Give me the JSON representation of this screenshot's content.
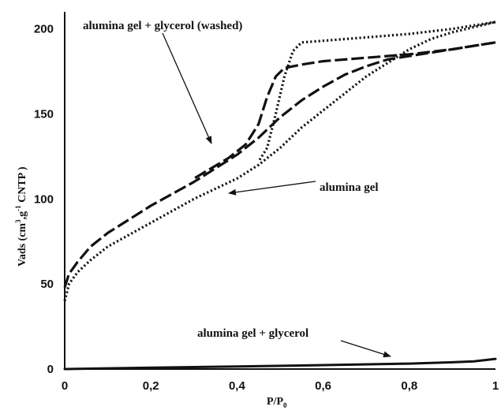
{
  "chart_data": {
    "type": "line",
    "xlabel": "P/P",
    "xlabel_sub": "0",
    "ylabel_parts": [
      "Vads (cm",
      "3",
      ",g",
      "-1",
      " CNTP )"
    ],
    "xlim": [
      0,
      1
    ],
    "ylim": [
      0,
      210
    ],
    "x_ticks": [
      0,
      0.2,
      0.4,
      0.6,
      0.8,
      1
    ],
    "x_tick_labels": [
      "0",
      "0,2",
      "0,4",
      "0,6",
      "0,8",
      "1"
    ],
    "y_ticks": [
      0,
      50,
      100,
      150,
      200
    ],
    "y_tick_labels": [
      "0",
      "50",
      "100",
      "150",
      "200"
    ],
    "grid": false,
    "series": [
      {
        "name": "alumina gel + glycerol (washed)",
        "style": "dash",
        "color": "#111111",
        "adsorption": [
          [
            0,
            48
          ],
          [
            0.01,
            56
          ],
          [
            0.03,
            63
          ],
          [
            0.06,
            72
          ],
          [
            0.1,
            80
          ],
          [
            0.15,
            88
          ],
          [
            0.2,
            96
          ],
          [
            0.25,
            103
          ],
          [
            0.3,
            110
          ],
          [
            0.35,
            118
          ],
          [
            0.4,
            126
          ],
          [
            0.45,
            136
          ],
          [
            0.5,
            148
          ],
          [
            0.55,
            158
          ],
          [
            0.6,
            166
          ],
          [
            0.65,
            173
          ],
          [
            0.7,
            178
          ],
          [
            0.75,
            182
          ],
          [
            0.8,
            184
          ],
          [
            0.85,
            186
          ],
          [
            0.9,
            188
          ],
          [
            0.95,
            190
          ],
          [
            1.0,
            192
          ]
        ],
        "desorption": [
          [
            1.0,
            192
          ],
          [
            0.9,
            188
          ],
          [
            0.8,
            185
          ],
          [
            0.7,
            183
          ],
          [
            0.6,
            181
          ],
          [
            0.55,
            179
          ],
          [
            0.51,
            177
          ],
          [
            0.49,
            172
          ],
          [
            0.47,
            160
          ],
          [
            0.45,
            144
          ],
          [
            0.42,
            132
          ],
          [
            0.38,
            124
          ],
          [
            0.3,
            112
          ]
        ]
      },
      {
        "name": "alumina gel",
        "style": "dot",
        "color": "#111111",
        "adsorption": [
          [
            0,
            40
          ],
          [
            0.01,
            50
          ],
          [
            0.03,
            57
          ],
          [
            0.06,
            64
          ],
          [
            0.1,
            72
          ],
          [
            0.15,
            79
          ],
          [
            0.2,
            86
          ],
          [
            0.25,
            93
          ],
          [
            0.3,
            100
          ],
          [
            0.35,
            106
          ],
          [
            0.4,
            112
          ],
          [
            0.45,
            120
          ],
          [
            0.5,
            130
          ],
          [
            0.55,
            142
          ],
          [
            0.6,
            152
          ],
          [
            0.65,
            162
          ],
          [
            0.7,
            172
          ],
          [
            0.75,
            180
          ],
          [
            0.8,
            188
          ],
          [
            0.85,
            194
          ],
          [
            0.9,
            198
          ],
          [
            0.95,
            201
          ],
          [
            1.0,
            204
          ]
        ],
        "desorption": [
          [
            1.0,
            204
          ],
          [
            0.9,
            200
          ],
          [
            0.8,
            197
          ],
          [
            0.7,
            195
          ],
          [
            0.6,
            193
          ],
          [
            0.55,
            192
          ],
          [
            0.53,
            187
          ],
          [
            0.51,
            172
          ],
          [
            0.49,
            150
          ],
          [
            0.47,
            130
          ],
          [
            0.45,
            122
          ]
        ]
      },
      {
        "name": "alumina gel + glycerol",
        "style": "solid",
        "color": "#111111",
        "adsorption": [
          [
            0,
            0
          ],
          [
            0.2,
            0.8
          ],
          [
            0.4,
            1.5
          ],
          [
            0.6,
            2.3
          ],
          [
            0.8,
            3.2
          ],
          [
            0.9,
            4
          ],
          [
            0.95,
            4.5
          ],
          [
            1.0,
            6
          ]
        ],
        "desorption": []
      }
    ],
    "annotations": [
      {
        "text": "alumina gel + glycerol (washed)",
        "series": 0
      },
      {
        "text": "alumina gel",
        "series": 1
      },
      {
        "text": "alumina gel + glycerol",
        "series": 2
      }
    ]
  }
}
